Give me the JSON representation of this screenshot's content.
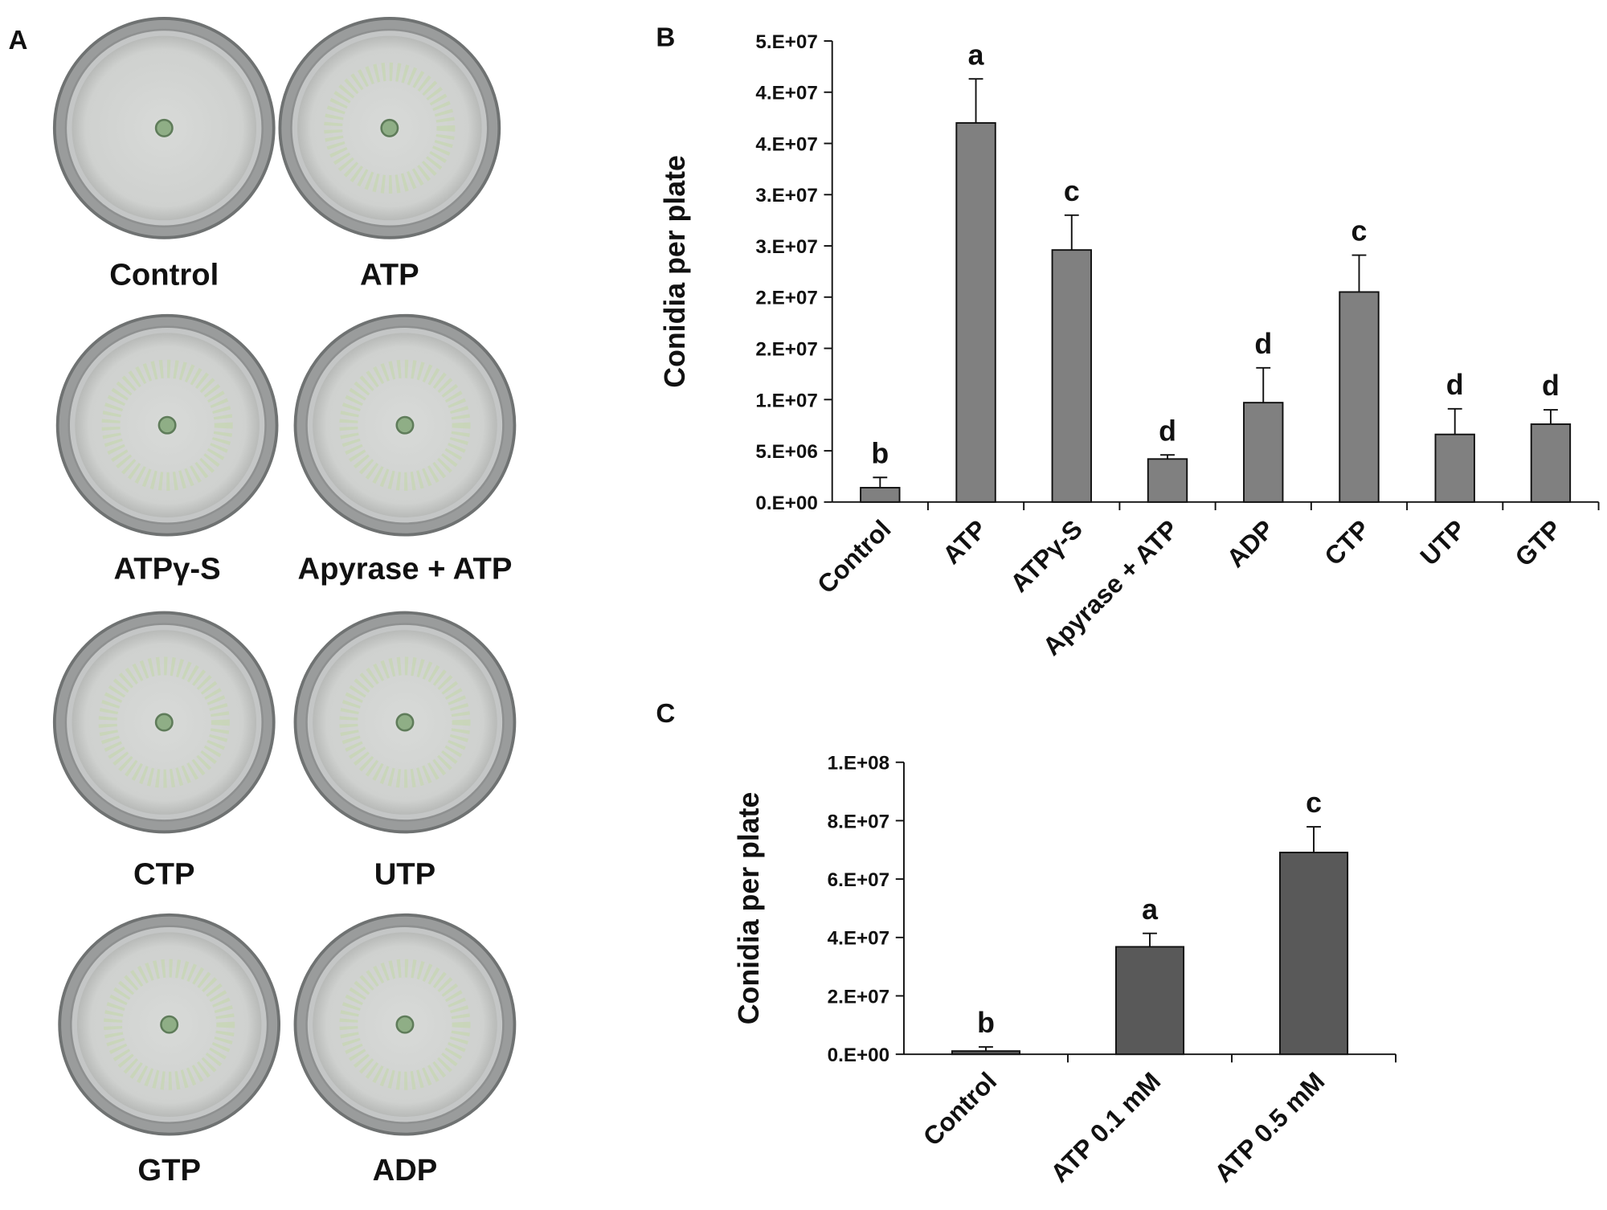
{
  "panel_a": {
    "label": "A",
    "plates": [
      "Control",
      "ATP",
      "ATPγ-S",
      "Apyrase + ATP",
      "CTP",
      "UTP",
      "GTP",
      "ADP"
    ]
  },
  "chart_data": [
    {
      "type": "bar",
      "panel_label": "B",
      "y_label": "Conidia per plate",
      "categories": [
        "Control",
        "ATP",
        "ATPγ-S",
        "Apyrase + ATP",
        "ADP",
        "CTP",
        "UTP",
        "GTP"
      ],
      "values": [
        1400000,
        37000000,
        24600000,
        4200000,
        9700000,
        20500000,
        6600000,
        7600000
      ],
      "errors": [
        1000000,
        4300000,
        3400000,
        400000,
        3400000,
        3600000,
        2500000,
        1400000
      ],
      "annotations": [
        "b",
        "a",
        "c",
        "d",
        "d",
        "c",
        "d",
        "d"
      ],
      "color": "#808080",
      "ylim": [
        0,
        45000000
      ],
      "yticks": [
        {
          "value": 0,
          "label": "0.E+00"
        },
        {
          "value": 5000000,
          "label": "5.E+06"
        },
        {
          "value": 10000000,
          "label": "1.E+07"
        },
        {
          "value": 15000000,
          "label": "2.E+07"
        },
        {
          "value": 20000000,
          "label": "2.E+07"
        },
        {
          "value": 25000000,
          "label": "3.E+07"
        },
        {
          "value": 30000000,
          "label": "3.E+07"
        },
        {
          "value": 35000000,
          "label": "4.E+07"
        },
        {
          "value": 40000000,
          "label": "4.E+07"
        },
        {
          "value": 45000000,
          "label": "5.E+07"
        }
      ],
      "grid": false
    },
    {
      "type": "bar",
      "panel_label": "C",
      "y_label": "Conidia per plate",
      "categories": [
        "Control",
        "ATP 0.1 mM",
        "ATP 0.5 mM"
      ],
      "values": [
        1100000,
        36800000,
        69100000
      ],
      "errors": [
        1400000,
        4600000,
        8800000
      ],
      "annotations": [
        "b",
        "a",
        "c"
      ],
      "color": "#595959",
      "ylim": [
        0,
        100000000
      ],
      "yticks": [
        {
          "value": 0,
          "label": "0.E+00"
        },
        {
          "value": 20000000,
          "label": "2.E+07"
        },
        {
          "value": 40000000,
          "label": "4.E+07"
        },
        {
          "value": 60000000,
          "label": "6.E+07"
        },
        {
          "value": 80000000,
          "label": "8.E+07"
        },
        {
          "value": 100000000,
          "label": "1.E+08"
        }
      ],
      "grid": false
    }
  ]
}
